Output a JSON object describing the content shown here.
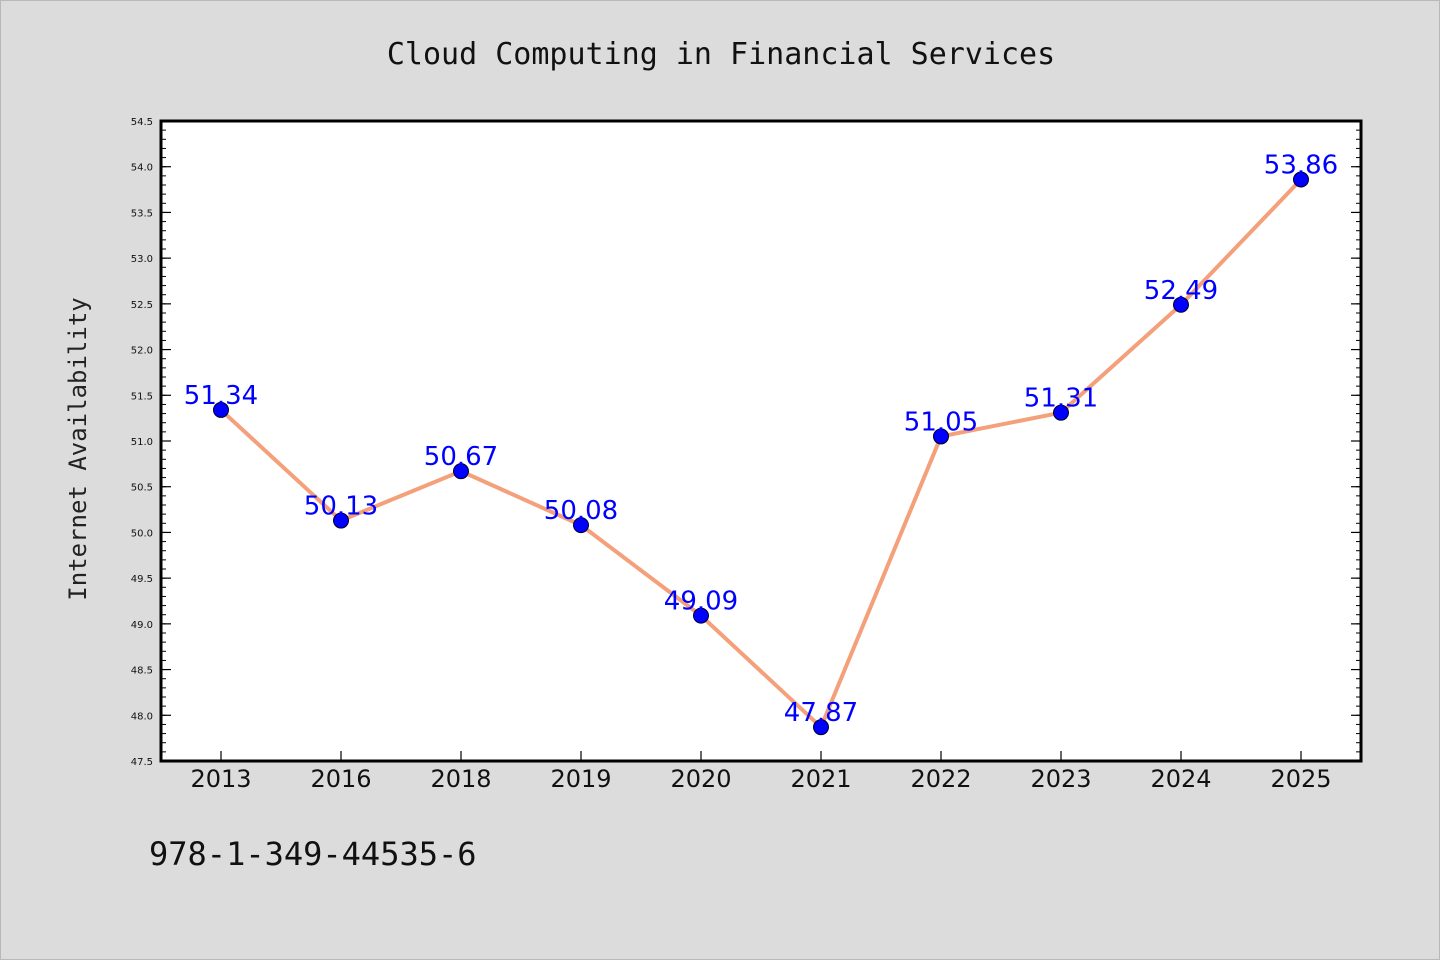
{
  "chart_data": {
    "type": "line",
    "title": "Cloud Computing in Financial Services",
    "xlabel": "",
    "ylabel": "Internet Availability",
    "categories": [
      "2013",
      "2016",
      "2018",
      "2019",
      "2020",
      "2021",
      "2022",
      "2023",
      "2024",
      "2025"
    ],
    "series": [
      {
        "values": [
          51.34,
          50.13,
          50.67,
          50.08,
          49.09,
          47.87,
          51.05,
          51.31,
          52.49,
          53.86
        ],
        "labels": [
          "51.34",
          "50.13",
          "50.67",
          "50.08",
          "49.09",
          "47.87",
          "51.05",
          "51.31",
          "52.49",
          "53.86"
        ],
        "line_color": "#f4a07a",
        "marker_color": "#0000ff"
      }
    ],
    "ylim": [
      47.5,
      54.5
    ],
    "yticks": [
      "47.5",
      "48.0",
      "48.5",
      "49.0",
      "49.5",
      "50.0",
      "50.5",
      "51.0",
      "51.5",
      "52.0",
      "52.5",
      "53.0",
      "53.5",
      "54.0",
      "54.5"
    ],
    "grid": false,
    "legend": "none",
    "background": "#dcdcdc",
    "plot_background": "#ffffff"
  },
  "footnote": "978-1-349-44535-6"
}
